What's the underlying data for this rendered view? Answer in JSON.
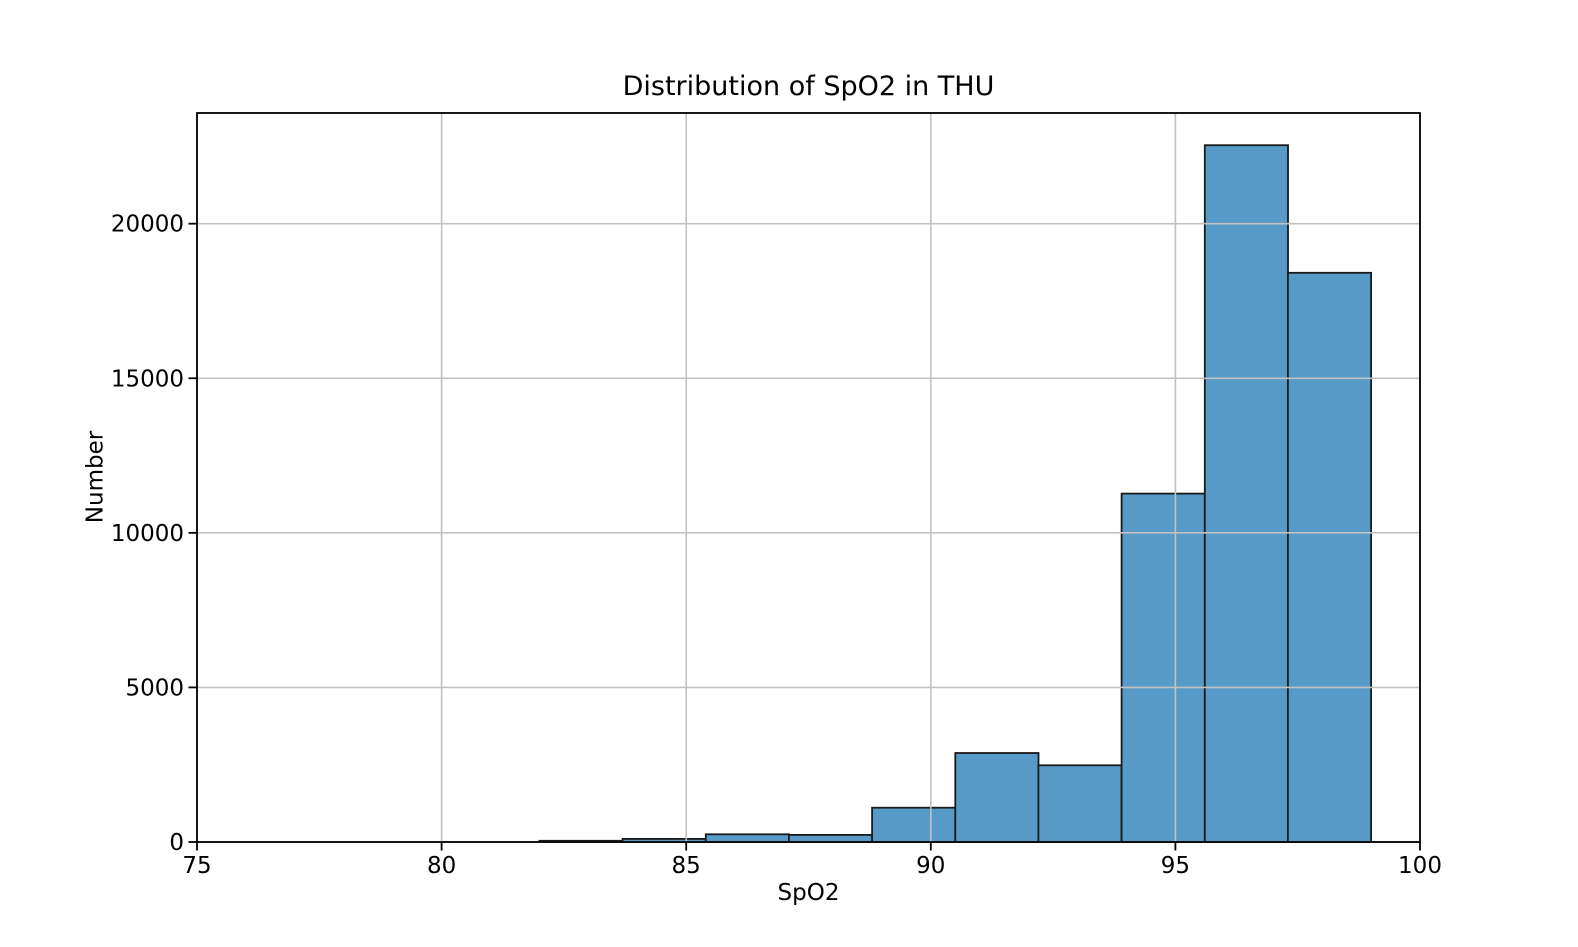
{
  "figure": {
    "background": "#ffffff"
  },
  "chart_data": {
    "type": "histogram",
    "title": "Distribution of SpO2 in THU",
    "xlabel": "SpO2",
    "ylabel": "Number",
    "bin_edges": [
      82.0,
      83.7,
      85.4,
      87.1,
      88.8,
      90.5,
      92.2,
      93.9,
      95.6,
      97.3,
      99.0
    ],
    "counts": [
      40,
      100,
      250,
      230,
      1110,
      2880,
      2480,
      11270,
      22540,
      18410
    ],
    "xlim": [
      75,
      100
    ],
    "ylim": [
      0,
      23580
    ],
    "x_ticks": [
      75,
      80,
      85,
      90,
      95,
      100
    ],
    "y_ticks": [
      0,
      5000,
      10000,
      15000,
      20000
    ],
    "grid": true,
    "grid_over_bars": true,
    "legend": "none",
    "colors": {
      "bar_fill": "#579ac7",
      "bar_edge": "#1a1a1a",
      "grid": "#c2c2c2",
      "spine": "#000000",
      "tick": "#000000"
    }
  }
}
